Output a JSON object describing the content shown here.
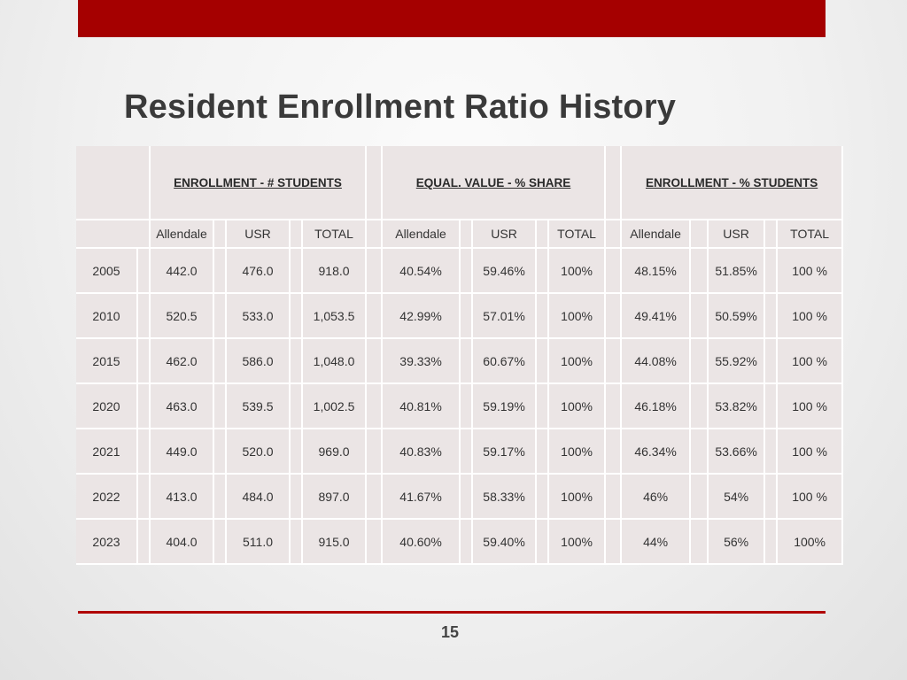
{
  "title": "Resident Enrollment Ratio History",
  "groups": [
    "ENROLLMENT - # STUDENTS",
    "EQUAL. VALUE - % SHARE",
    "ENROLLMENT - % STUDENTS"
  ],
  "subheaders": {
    "enrollment_students": [
      "Allendale",
      "USR",
      "TOTAL"
    ],
    "equal_value": [
      "Allendale",
      "USR",
      "TOTAL"
    ],
    "enrollment_pct": [
      "Allendale",
      "USR",
      "TOTAL"
    ]
  },
  "rows": [
    {
      "year": "2005",
      "es_allendale": "442.0",
      "es_usr": "476.0",
      "es_total": "918.0",
      "ev_allendale": "40.54%",
      "ev_usr": "59.46%",
      "ev_total": "100%",
      "ep_allendale": "48.15%",
      "ep_usr": "51.85%",
      "ep_total": "100 %"
    },
    {
      "year": "2010",
      "es_allendale": "520.5",
      "es_usr": "533.0",
      "es_total": "1,053.5",
      "ev_allendale": "42.99%",
      "ev_usr": "57.01%",
      "ev_total": "100%",
      "ep_allendale": "49.41%",
      "ep_usr": "50.59%",
      "ep_total": "100 %"
    },
    {
      "year": "2015",
      "es_allendale": "462.0",
      "es_usr": "586.0",
      "es_total": "1,048.0",
      "ev_allendale": "39.33%",
      "ev_usr": "60.67%",
      "ev_total": "100%",
      "ep_allendale": "44.08%",
      "ep_usr": "55.92%",
      "ep_total": "100 %"
    },
    {
      "year": "2020",
      "es_allendale": "463.0",
      "es_usr": "539.5",
      "es_total": "1,002.5",
      "ev_allendale": "40.81%",
      "ev_usr": "59.19%",
      "ev_total": "100%",
      "ep_allendale": "46.18%",
      "ep_usr": "53.82%",
      "ep_total": "100 %"
    },
    {
      "year": "2021",
      "es_allendale": "449.0",
      "es_usr": "520.0",
      "es_total": "969.0",
      "ev_allendale": "40.83%",
      "ev_usr": "59.17%",
      "ev_total": "100%",
      "ep_allendale": "46.34%",
      "ep_usr": "53.66%",
      "ep_total": "100 %"
    },
    {
      "year": "2022",
      "es_allendale": "413.0",
      "es_usr": "484.0",
      "es_total": "897.0",
      "ev_allendale": "41.67%",
      "ev_usr": "58.33%",
      "ev_total": "100%",
      "ep_allendale": "46%",
      "ep_usr": "54%",
      "ep_total": "100 %"
    },
    {
      "year": "2023",
      "es_allendale": "404.0",
      "es_usr": "511.0",
      "es_total": "915.0",
      "ev_allendale": "40.60%",
      "ev_usr": "59.40%",
      "ev_total": "100%",
      "ep_allendale": "44%",
      "ep_usr": "56%",
      "ep_total": "100%"
    }
  ],
  "page_number": "15",
  "colors": {
    "accent": "#a50000",
    "cell": "#ebe5e5"
  }
}
